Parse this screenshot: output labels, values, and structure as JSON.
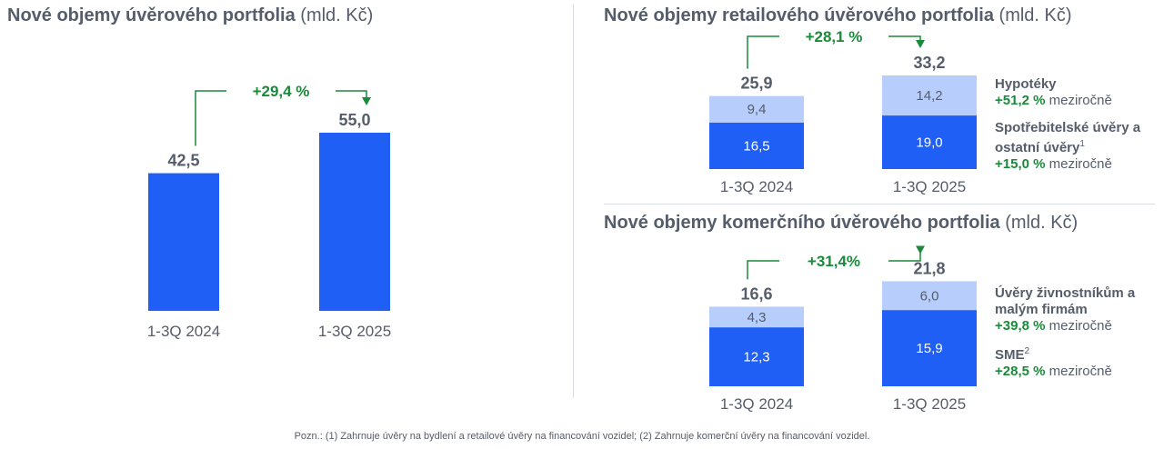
{
  "colors": {
    "dark": "#1f5ff5",
    "light": "#b7cdfb",
    "green": "#1a8a3a",
    "text": "#555d6b"
  },
  "left": {
    "title": "Nové objemy úvěrového portfolia",
    "unit": "(mld. Kč)"
  },
  "retail": {
    "title": "Nové objemy retailového úvěrového portfolia",
    "unit": "(mld. Kč)",
    "legend": {
      "s1_name": "Hypotéky",
      "s1_change": "+51,2 %",
      "s1_suffix": "meziročně",
      "s2_name_line1": "Spotřebitelské úvěry a",
      "s2_name_line2": "ostatní úvěry",
      "s2_sup": "1",
      "s2_change": "+15,0 %",
      "s2_suffix": "meziročně"
    }
  },
  "commercial": {
    "title": "Nové objemy komerčního úvěrového portfolia",
    "unit": "(mld. Kč)",
    "legend": {
      "s1_name_line1": "Úvěry živnostníkům a",
      "s1_name_line2": "malým firmám",
      "s1_change": "+39,8 %",
      "s1_suffix": "meziročně",
      "s2_name": "SME",
      "s2_sup": "2",
      "s2_change": "+28,5 %",
      "s2_suffix": "meziročně"
    }
  },
  "footnote": "Pozn.: (1) Zahrnuje úvěry na bydlení a retailové úvěry na financování vozidel; (2) Zahrnuje komerční úvěry na financování vozidel.",
  "chart_data": [
    {
      "type": "bar",
      "title": "Nové objemy úvěrového portfolia (mld. Kč)",
      "categories": [
        "1-3Q 2024",
        "1-3Q 2025"
      ],
      "values": [
        42.5,
        55.0
      ],
      "value_labels": [
        "42,5",
        "55,0"
      ],
      "growth_label": "+29,4 %",
      "ylim": [
        0,
        55.0
      ]
    },
    {
      "type": "bar",
      "stacked": true,
      "title": "Nové objemy retailového úvěrového portfolia (mld. Kč)",
      "categories": [
        "1-3Q 2024",
        "1-3Q 2025"
      ],
      "series": [
        {
          "name": "Spotřebitelské úvěry a ostatní úvěry",
          "values": [
            16.5,
            19.0
          ],
          "labels": [
            "16,5",
            "19,0"
          ]
        },
        {
          "name": "Hypotéky",
          "values": [
            9.4,
            14.2
          ],
          "labels": [
            "9,4",
            "14,2"
          ]
        }
      ],
      "totals": [
        25.9,
        33.2
      ],
      "total_labels": [
        "25,9",
        "33,2"
      ],
      "growth_label": "+28,1 %"
    },
    {
      "type": "bar",
      "stacked": true,
      "title": "Nové objemy komerčního úvěrového portfolia (mld. Kč)",
      "categories": [
        "1-3Q 2024",
        "1-3Q 2025"
      ],
      "series": [
        {
          "name": "SME",
          "values": [
            12.3,
            15.9
          ],
          "labels": [
            "12,3",
            "15,9"
          ]
        },
        {
          "name": "Úvěry živnostníkům a malým firmám",
          "values": [
            4.3,
            6.0
          ],
          "labels": [
            "4,3",
            "6,0"
          ]
        }
      ],
      "totals": [
        16.6,
        21.8
      ],
      "total_labels": [
        "16,6",
        "21,8"
      ],
      "growth_label": "+31,4%"
    }
  ]
}
